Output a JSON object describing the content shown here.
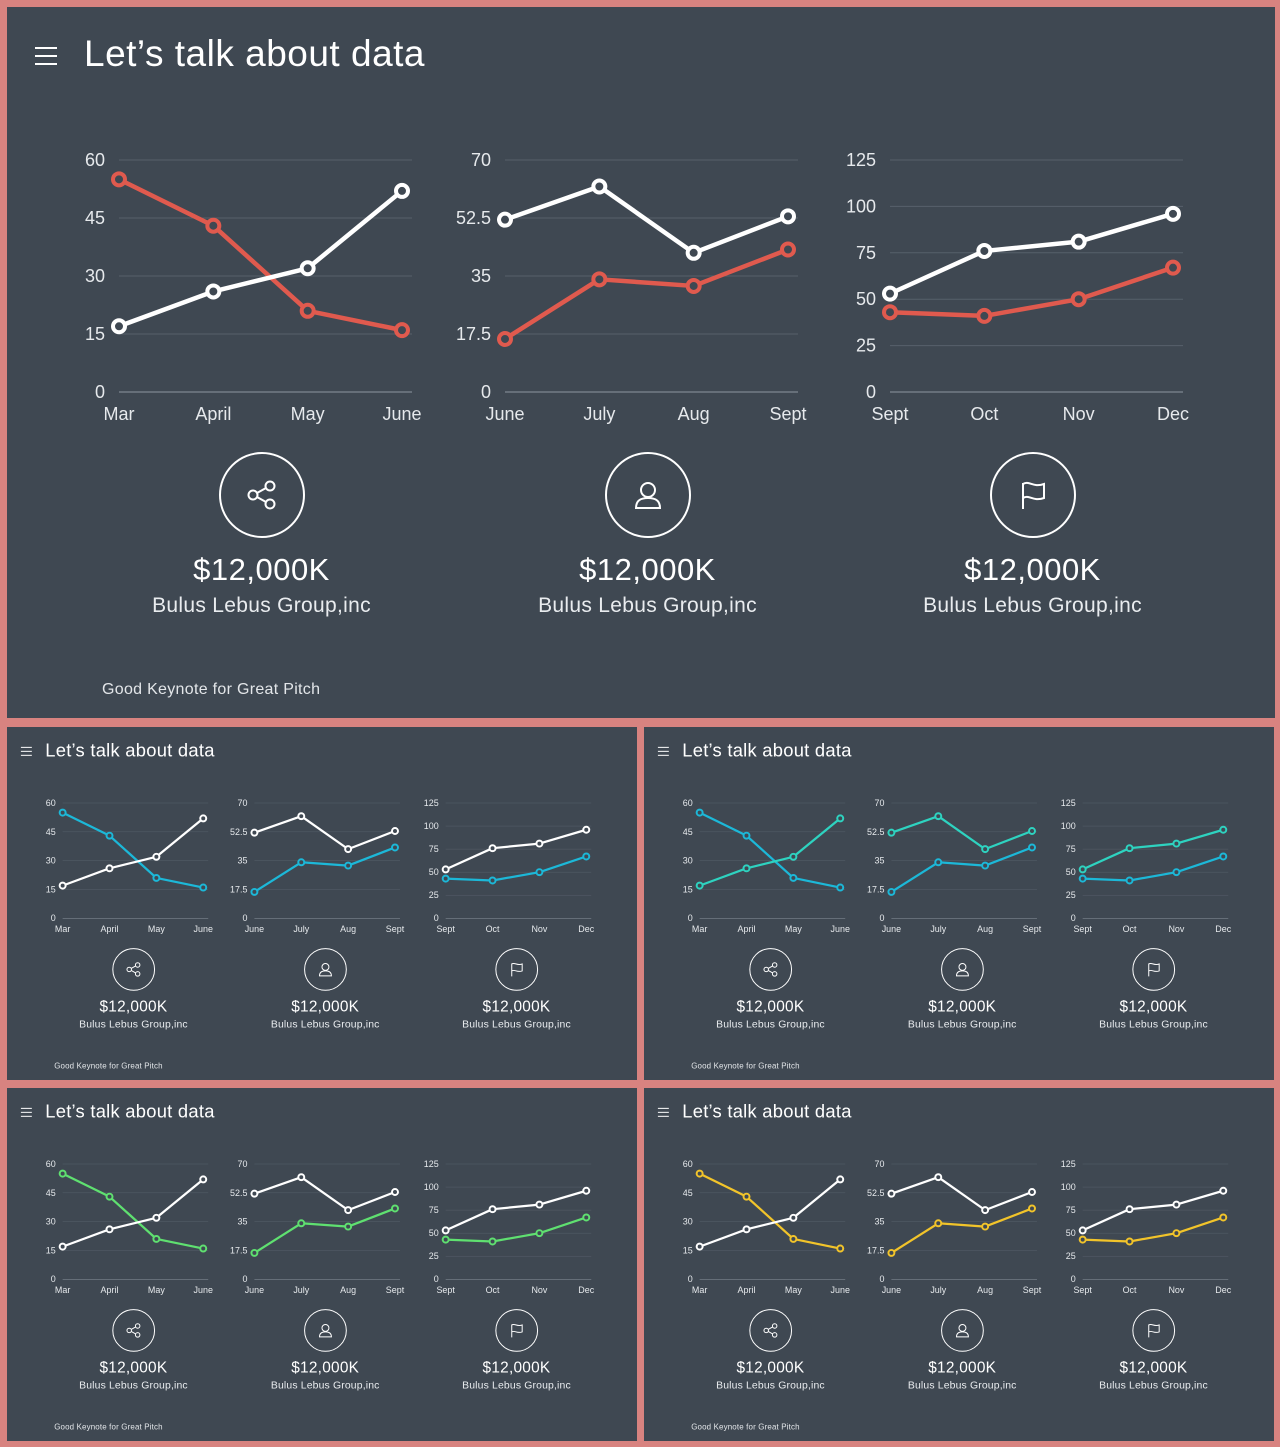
{
  "title": "Let’s talk about data",
  "footer": "Good Keynote for Great Pitch",
  "stats": [
    {
      "icon": "share-icon",
      "value": "$12,000K",
      "company": "Bulus Lebus Group,inc"
    },
    {
      "icon": "user-icon",
      "value": "$12,000K",
      "company": "Bulus Lebus Group,inc"
    },
    {
      "icon": "flag-icon",
      "value": "$12,000K",
      "company": "Bulus Lebus Group,inc"
    }
  ],
  "colors": {
    "background": "#3f4852",
    "border": "#d88380",
    "white_series": "#ffffff",
    "variants": [
      "#e05a4e",
      "#1cb8d8",
      "#1cb8d8",
      "#5fe070",
      "#f2c42a"
    ],
    "variant_2_white_replacement": "#2ed3c0"
  },
  "chart_data": [
    {
      "type": "line",
      "categories": [
        "Mar",
        "April",
        "May",
        "June"
      ],
      "yticks": [
        "0",
        "15",
        "30",
        "45",
        "60"
      ],
      "ylim": [
        0,
        60
      ],
      "series": [
        {
          "values": [
            55,
            43,
            21,
            16
          ]
        },
        {
          "values": [
            17,
            26,
            32,
            52
          ]
        }
      ]
    },
    {
      "type": "line",
      "categories": [
        "June",
        "July",
        "Aug",
        "Sept"
      ],
      "yticks": [
        "0",
        "17.5",
        "35",
        "52.5",
        "70"
      ],
      "ylim": [
        0,
        70
      ],
      "series": [
        {
          "values": [
            16,
            34,
            32,
            43
          ]
        },
        {
          "values": [
            52,
            62,
            42,
            53
          ]
        }
      ]
    },
    {
      "type": "line",
      "categories": [
        "Sept",
        "Oct",
        "Nov",
        "Dec"
      ],
      "yticks": [
        "0",
        "25",
        "50",
        "75",
        "100",
        "125"
      ],
      "ylim": [
        0,
        125
      ],
      "series": [
        {
          "values": [
            43,
            41,
            50,
            67
          ]
        },
        {
          "values": [
            53,
            76,
            81,
            96
          ]
        }
      ]
    }
  ]
}
